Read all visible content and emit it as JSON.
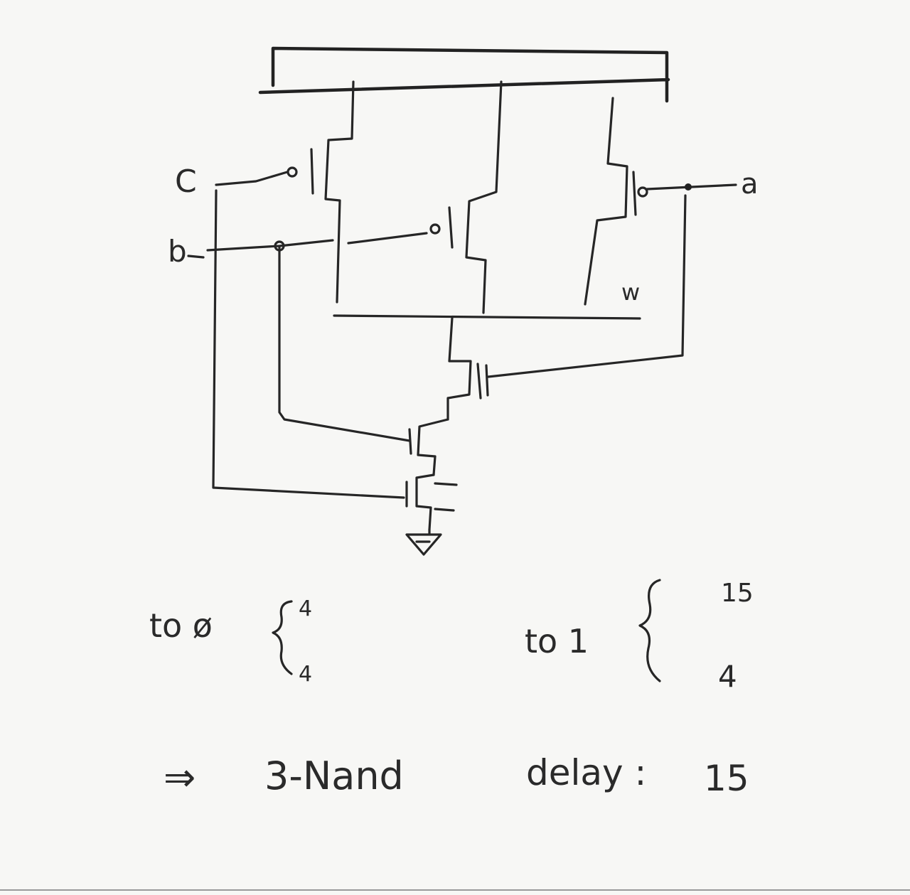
{
  "labels": {
    "input_c": "C",
    "input_b": "b",
    "input_a": "a",
    "node_w": "w"
  },
  "notes": {
    "to_zero": "to ø",
    "to_zero_top": "4",
    "to_zero_bottom": "4",
    "to_one": "to 1",
    "to_one_top": "15",
    "to_one_bottom": "4",
    "conclusion_arrow": "⇒",
    "conclusion_gate": "3-Nand",
    "conclusion_delay_label": "delay :",
    "conclusion_delay_value": "15"
  }
}
